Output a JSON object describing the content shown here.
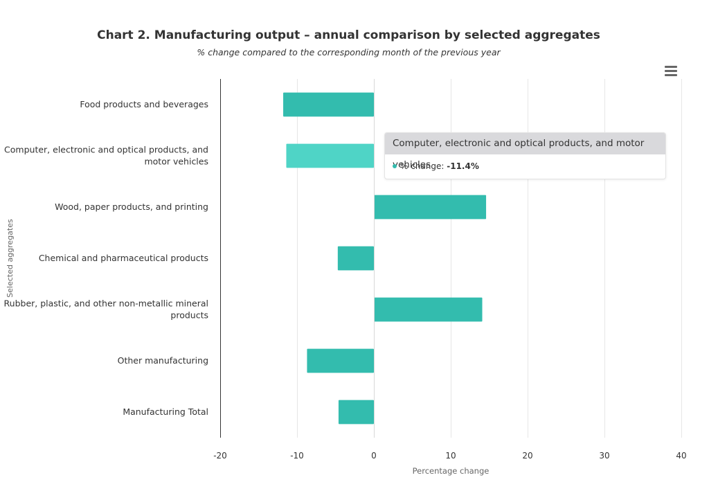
{
  "chart": {
    "title": "Chart 2. Manufacturing output – annual comparison by selected aggregates",
    "subtitle": "% change compared to the corresponding month of the previous year",
    "menu_icon": "hamburger-menu-icon"
  },
  "colors": {
    "bar": "#33bcae",
    "bar_hover": "#4fd4c6",
    "grid": "#e6e6e6",
    "axis_line": "#333333",
    "text": "#333333",
    "muted_text": "#666666"
  },
  "chart_data": {
    "type": "bar",
    "orientation": "horizontal",
    "title": "Chart 2. Manufacturing output – annual comparison by selected aggregates",
    "subtitle": "% change compared to the corresponding month of the previous year",
    "xlabel": "Percentage change",
    "ylabel": "Selected aggregates",
    "xlim": [
      -20,
      40
    ],
    "xticks": [
      -20,
      -10,
      0,
      10,
      20,
      30,
      40
    ],
    "grid": true,
    "legend": "none",
    "categories": [
      [
        "Food products and beverages"
      ],
      [
        "Computer, electronic and optical products, and",
        "motor vehicles"
      ],
      [
        "Wood, paper products, and printing"
      ],
      [
        "Chemical and pharmaceutical products"
      ],
      [
        "Rubber, plastic, and other non-metallic mineral",
        "products"
      ],
      [
        "Other manufacturing"
      ],
      [
        "Manufacturing Total"
      ]
    ],
    "series": [
      {
        "values": [
          -11.8,
          -11.4,
          14.6,
          -4.7,
          14.1,
          -8.7,
          -4.6
        ]
      }
    ],
    "highlighted_index": 1
  },
  "tooltip": {
    "title": "Computer, electronic and optical products, and motor vehicles",
    "label": "% change: ",
    "value": "-11.4%"
  }
}
